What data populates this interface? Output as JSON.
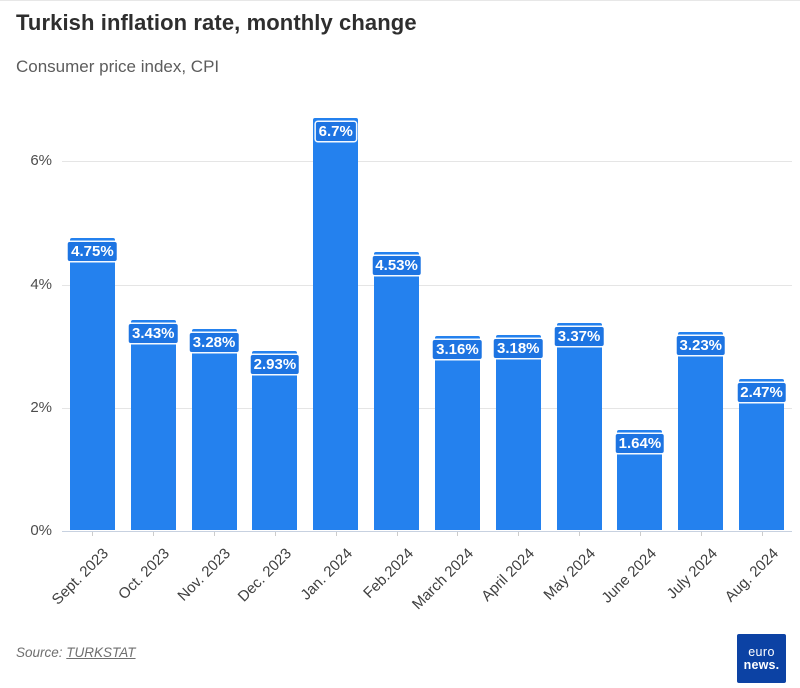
{
  "title": "Turkish inflation rate, monthly change",
  "subtitle": "Consumer price index, CPI",
  "source": {
    "prefix": "Source:",
    "link_label": "TURKSTAT"
  },
  "logo": {
    "line1": "euro",
    "line2": "news.",
    "bg_color": "#0c42a4"
  },
  "colors": {
    "bar": "#2481ee",
    "value_chip": "#1d74e2",
    "gridline": "#e5e5e5",
    "baseline": "#c7d1e0",
    "axis_text": "#4d4d4d",
    "title_text": "#2e2e2e",
    "subtitle_text": "#5c5c5c",
    "source_text": "#6f6f6f"
  },
  "chart_data": {
    "type": "bar",
    "title": "Turkish inflation rate, monthly change",
    "subtitle": "Consumer price index, CPI",
    "categories": [
      "Sept. 2023",
      "Oct. 2023",
      "Nov. 2023",
      "Dec. 2023",
      "Jan. 2024",
      "Feb.2024",
      "March 2024",
      "April 2024",
      "May 2024",
      "June 2024",
      "July 2024",
      "Aug. 2024"
    ],
    "values": [
      4.75,
      3.43,
      3.28,
      2.93,
      6.7,
      4.53,
      3.16,
      3.18,
      3.37,
      1.64,
      3.23,
      2.47
    ],
    "value_labels": [
      "4.75%",
      "3.43%",
      "3.28%",
      "2.93%",
      "6.7%",
      "4.53%",
      "3.16%",
      "3.18%",
      "3.37%",
      "1.64%",
      "3.23%",
      "2.47%"
    ],
    "xlabel": "",
    "ylabel": "",
    "y_tick_labels": [
      "0%",
      "2%",
      "4%",
      "6%"
    ],
    "y_tick_values": [
      0,
      2,
      4,
      6
    ],
    "ylim": [
      0,
      6.95
    ],
    "grid": true,
    "legend": false,
    "x_labels_rotated_degrees": 45
  }
}
